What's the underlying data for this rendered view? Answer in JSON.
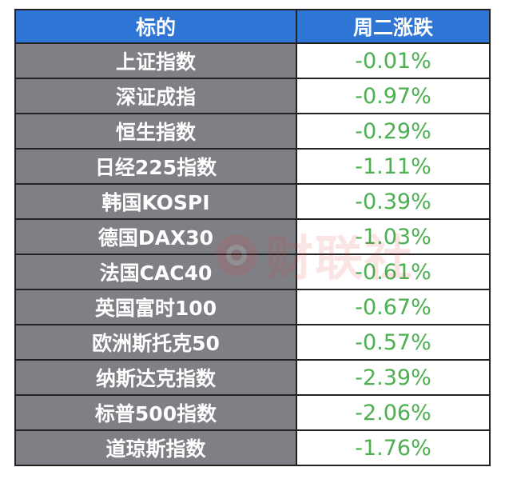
{
  "table": {
    "headers": {
      "name": "标的",
      "change": "周二涨跌"
    },
    "rows": [
      {
        "name": "上证指数",
        "change": "-0.01%"
      },
      {
        "name": "深证成指",
        "change": "-0.97%"
      },
      {
        "name": "恒生指数",
        "change": "-0.29%"
      },
      {
        "name": "日经225指数",
        "change": "-1.11%"
      },
      {
        "name": "韩国KOSPI",
        "change": "-0.39%"
      },
      {
        "name": "德国DAX30",
        "change": "-1.03%"
      },
      {
        "name": "法国CAC40",
        "change": "-0.61%"
      },
      {
        "name": "英国富时100",
        "change": "-0.67%"
      },
      {
        "name": "欧洲斯托克50",
        "change": "-0.57%"
      },
      {
        "name": "纳斯达克指数",
        "change": "-2.39%"
      },
      {
        "name": "标普500指数",
        "change": "-2.06%"
      },
      {
        "name": "道琼斯指数",
        "change": "-1.76%"
      }
    ]
  },
  "watermark": {
    "text": "财联社"
  },
  "colors": {
    "header_bg": "#2e75d5",
    "name_cell_bg": "#7f8085",
    "negative_change": "#4caf50",
    "border": "#222222"
  }
}
